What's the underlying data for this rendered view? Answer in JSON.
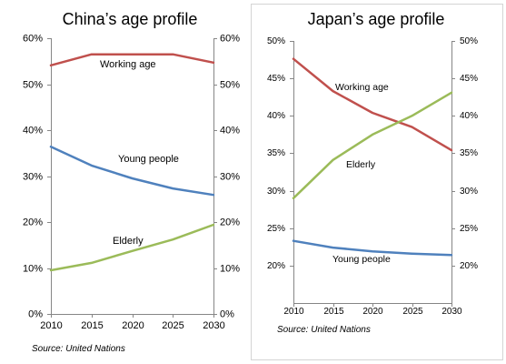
{
  "chart_data": [
    {
      "type": "line",
      "title": "China’s age profile",
      "x": [
        2010,
        2015,
        2020,
        2025,
        2030
      ],
      "x_tick_labels": [
        "2010",
        "2015",
        "2020",
        "2025",
        "2030"
      ],
      "ylim": [
        0,
        60
      ],
      "y_ticks": [
        0,
        10,
        20,
        30,
        40,
        50,
        60
      ],
      "y_tick_labels": [
        "0%",
        "10%",
        "20%",
        "30%",
        "40%",
        "50%",
        "60%"
      ],
      "secondary_y_axis": true,
      "grid": false,
      "legend": false,
      "series": [
        {
          "name": "Working age",
          "color": "#c0504d",
          "values": [
            54.1,
            56.5,
            56.5,
            56.5,
            54.7
          ]
        },
        {
          "name": "Young people",
          "color": "#4f81bd",
          "values": [
            36.4,
            32.3,
            29.5,
            27.3,
            25.9
          ]
        },
        {
          "name": "Elderly",
          "color": "#9bbb59",
          "values": [
            9.5,
            11.1,
            13.7,
            16.2,
            19.4
          ]
        }
      ],
      "source": "Source: United Nations"
    },
    {
      "type": "line",
      "title": "Japan’s age profile",
      "x": [
        2010,
        2015,
        2020,
        2025,
        2030
      ],
      "x_tick_labels": [
        "2010",
        "2015",
        "2020",
        "2025",
        "2030"
      ],
      "ylim": [
        15,
        50
      ],
      "y_ticks": [
        20,
        25,
        30,
        35,
        40,
        45,
        50
      ],
      "y_tick_labels": [
        "20%",
        "25%",
        "30%",
        "35%",
        "40%",
        "45%",
        "50%"
      ],
      "secondary_y_axis": true,
      "grid": false,
      "legend": false,
      "series": [
        {
          "name": "Working age",
          "color": "#c0504d",
          "values": [
            47.6,
            43.3,
            40.4,
            38.5,
            35.4
          ]
        },
        {
          "name": "Young people",
          "color": "#4f81bd",
          "values": [
            23.3,
            22.4,
            21.9,
            21.6,
            21.4
          ]
        },
        {
          "name": "Elderly",
          "color": "#9bbb59",
          "values": [
            29.0,
            34.1,
            37.5,
            40.0,
            43.1
          ]
        }
      ],
      "source": "Source: United Nations"
    }
  ]
}
